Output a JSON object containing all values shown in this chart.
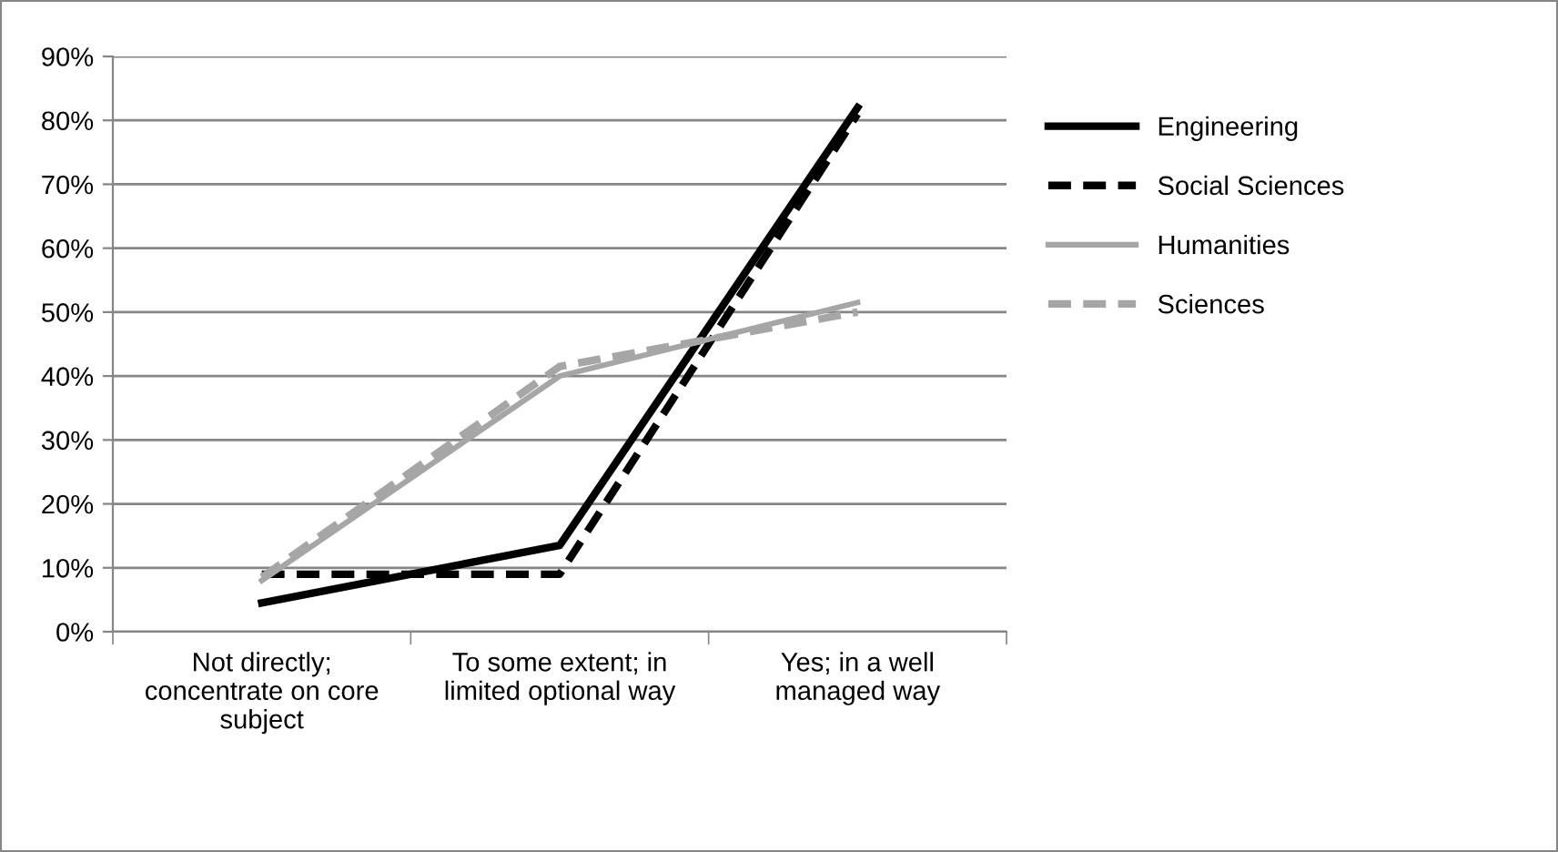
{
  "chart_data": {
    "type": "line",
    "categories": [
      "Not directly;\nconcentrate on core\nsubject",
      "To some extent; in\nlimited optional way",
      "Yes; in a well\nmanaged way"
    ],
    "series": [
      {
        "name": "Engineering",
        "color": "#000000",
        "line_style": "solid",
        "values": [
          4.5,
          13.5,
          82
        ]
      },
      {
        "name": "Social Sciences",
        "color": "#000000",
        "line_style": "dashed",
        "values": [
          9,
          9,
          81
        ]
      },
      {
        "name": "Humanities",
        "color": "#a6a6a6",
        "line_style": "solid",
        "values": [
          8,
          40,
          51.5
        ]
      },
      {
        "name": "Sciences",
        "color": "#a6a6a6",
        "line_style": "dashed",
        "values": [
          8.5,
          41.5,
          50
        ]
      }
    ],
    "ylim": [
      0,
      90
    ],
    "yticks": [
      {
        "value": 0,
        "label": "0%"
      },
      {
        "value": 10,
        "label": "10%"
      },
      {
        "value": 20,
        "label": "20%"
      },
      {
        "value": 30,
        "label": "30%"
      },
      {
        "value": 40,
        "label": "40%"
      },
      {
        "value": 50,
        "label": "50%"
      },
      {
        "value": 60,
        "label": "60%"
      },
      {
        "value": 70,
        "label": "70%"
      },
      {
        "value": 80,
        "label": "80%"
      },
      {
        "value": 90,
        "label": "90%"
      }
    ],
    "grid": "y",
    "legend": "right",
    "marker": "none"
  }
}
